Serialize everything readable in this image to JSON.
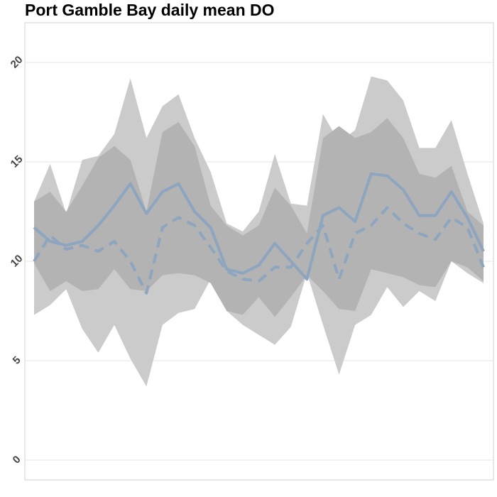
{
  "chart_data": {
    "type": "line",
    "title": "Port Gamble Bay daily mean DO",
    "categories": [
      null,
      null,
      null,
      null,
      null,
      null,
      null,
      null,
      null,
      null,
      null,
      null,
      null,
      null,
      null,
      null,
      null,
      null,
      null,
      null,
      null,
      null,
      null,
      null,
      null,
      null,
      null,
      null,
      null
    ],
    "bands": [
      {
        "color": "#cbcbcb",
        "upper": [
          13.0,
          14.9,
          12.4,
          15.1,
          15.3,
          16.4,
          19.2,
          16.2,
          17.8,
          18.4,
          16.2,
          14.5,
          11.9,
          11.5,
          12.5,
          15.4,
          12.9,
          12.8,
          17.4,
          16.0,
          16.6,
          19.3,
          19.1,
          18.1,
          15.7,
          15.7,
          17.1,
          14.4,
          11.9
        ],
        "lower": [
          7.3,
          7.8,
          8.6,
          6.6,
          5.4,
          6.8,
          5.1,
          3.7,
          6.8,
          7.4,
          7.6,
          9.1,
          7.5,
          6.8,
          6.3,
          5.8,
          6.7,
          9.4,
          6.8,
          4.3,
          6.8,
          7.3,
          8.7,
          7.7,
          8.5,
          8.0,
          10.0,
          9.4,
          8.9
        ]
      },
      {
        "color": "#b3b3b3",
        "upper": [
          13.0,
          13.5,
          12.5,
          13.8,
          15.2,
          15.8,
          15.1,
          12.5,
          16.5,
          17.0,
          15.8,
          12.8,
          11.8,
          11.3,
          11.8,
          13.7,
          12.8,
          11.4,
          16.2,
          16.8,
          16.2,
          16.5,
          17.2,
          16.2,
          14.4,
          14.2,
          14.8,
          12.5,
          11.8
        ],
        "lower": [
          9.9,
          8.5,
          9.0,
          8.5,
          8.6,
          9.6,
          8.6,
          8.5,
          9.3,
          9.4,
          9.3,
          8.9,
          7.5,
          7.3,
          8.2,
          7.2,
          8.2,
          9.3,
          8.5,
          7.6,
          7.5,
          9.6,
          9.4,
          9.2,
          8.8,
          8.7,
          10.0,
          9.7,
          9.0
        ]
      }
    ],
    "series": [
      {
        "color": "#8da5bf",
        "dashed": false,
        "values": [
          11.7,
          11.0,
          10.8,
          11.0,
          11.8,
          12.8,
          13.9,
          12.4,
          13.5,
          13.9,
          12.5,
          11.7,
          9.6,
          9.4,
          9.8,
          10.9,
          10.0,
          9.1,
          12.3,
          12.7,
          12.0,
          14.4,
          14.3,
          13.6,
          12.3,
          12.3,
          13.5,
          12.2,
          10.5
        ]
      },
      {
        "color": "#8da5bf",
        "dashed": true,
        "values": [
          10.0,
          11.3,
          10.6,
          10.8,
          10.5,
          11.0,
          10.0,
          8.4,
          11.7,
          12.2,
          11.8,
          10.7,
          9.5,
          9.1,
          9.0,
          9.7,
          9.7,
          10.9,
          11.8,
          9.1,
          11.4,
          11.8,
          12.7,
          11.9,
          11.4,
          11.1,
          12.2,
          11.7,
          9.7
        ]
      }
    ],
    "ylim": [
      -1,
      22
    ],
    "yticks": [
      0,
      5,
      10,
      15,
      20
    ],
    "grid": true
  }
}
